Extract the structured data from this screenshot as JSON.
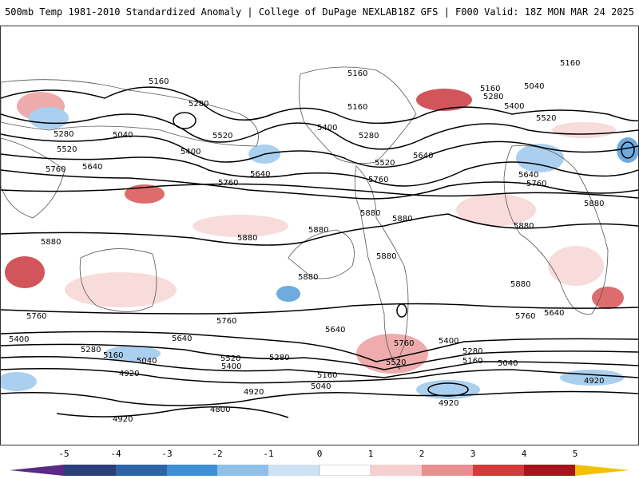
{
  "header": {
    "left_title": "500mb Temp 1981-2010 Standardized Anomaly | College of DuPage NEXLAB",
    "right_title": "18Z GFS | F000 Valid: 18Z MON MAR 24 2025"
  },
  "map": {
    "contour_labels": [
      "5160",
      "5040",
      "5280",
      "5400",
      "5520",
      "5640",
      "5760",
      "5880",
      "4920",
      "4800"
    ]
  },
  "colorbar": {
    "tick_labels": [
      "-5",
      "-4",
      "-3",
      "-2",
      "-1",
      "0",
      "1",
      "2",
      "3",
      "4",
      "5"
    ],
    "colors": [
      "#5a2a86",
      "#2a3f7a",
      "#2d64a8",
      "#3d8fd6",
      "#8ec0ea",
      "#cfe2f3",
      "#ffffff",
      "#ffffff",
      "#f6cfcf",
      "#e89090",
      "#d33b3b",
      "#a8121a",
      "#6e0a0a",
      "#f2c200"
    ]
  }
}
